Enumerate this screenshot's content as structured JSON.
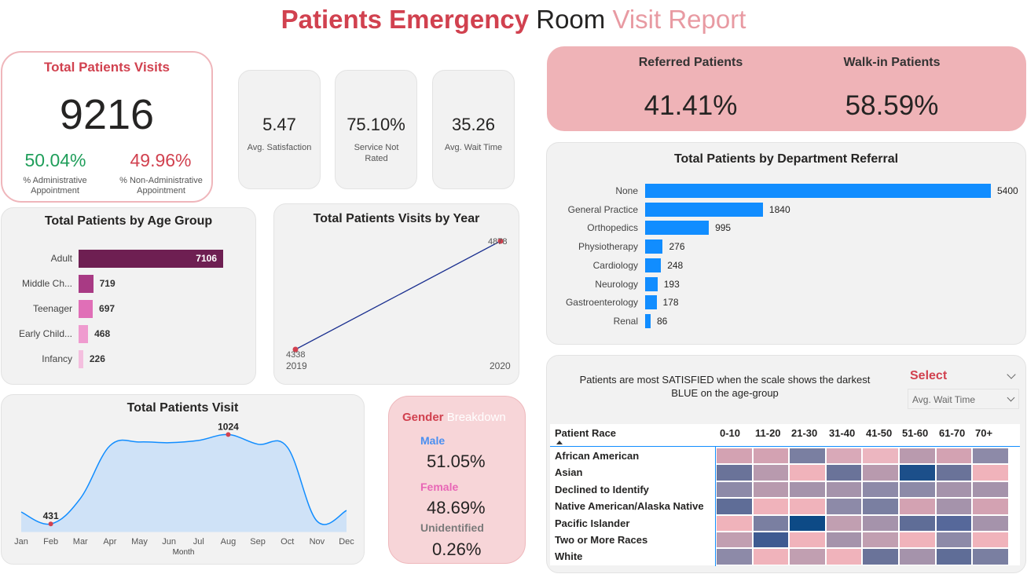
{
  "header": {
    "title_part1": "Patients Emergency",
    "title_part2": "Room",
    "title_part3": "Visit Report"
  },
  "total_visits": {
    "title": "Total Patients Visits",
    "value": "9216",
    "admin_pct": "50.04%",
    "admin_label": "% Administrative Appointment",
    "non_admin_pct": "49.96%",
    "non_admin_label": "% Non-Administrative Appointment"
  },
  "kpis": [
    {
      "value": "5.47",
      "label": "Avg. Satisfaction"
    },
    {
      "value": "75.10%",
      "label": "Service Not Rated"
    },
    {
      "value": "35.26",
      "label": "Avg. Wait Time"
    }
  ],
  "referral": {
    "referred_label": "Referred Patients",
    "referred_value": "41.41%",
    "walkin_label": "Walk-in Patients",
    "walkin_value": "58.59%"
  },
  "colors": {
    "accent_red": "#d1414f",
    "bar_blue": "#118dff",
    "pink_card": "#efb3b7",
    "male": "#4a8ff0",
    "female": "#e866b6",
    "unidentified": "#7a7a7a"
  },
  "age_group": {
    "title": "Total Patients by Age Group",
    "chart_data": {
      "type": "bar",
      "orientation": "horizontal",
      "categories": [
        "Adult",
        "Middle Ch...",
        "Teenager",
        "Early Child...",
        "Infancy"
      ],
      "values": [
        7106,
        719,
        697,
        468,
        226
      ],
      "colors": [
        "#6e1f52",
        "#a83a84",
        "#e06fb7",
        "#ef9bcf",
        "#f4bfdf"
      ]
    }
  },
  "visits_by_year": {
    "title": "Total Patients Visits by Year",
    "chart_data": {
      "type": "line",
      "x": [
        "2019",
        "2020"
      ],
      "values": [
        4338,
        4878
      ],
      "value_labels": [
        "4338",
        "4878"
      ]
    }
  },
  "department_referral": {
    "title": "Total Patients by Department Referral",
    "chart_data": {
      "type": "bar",
      "orientation": "horizontal",
      "categories": [
        "None",
        "General Practice",
        "Orthopedics",
        "Physiotherapy",
        "Cardiology",
        "Neurology",
        "Gastroenterology",
        "Renal"
      ],
      "values": [
        5400,
        1840,
        995,
        276,
        248,
        193,
        178,
        86
      ]
    }
  },
  "monthly_visits": {
    "title": "Total Patients Visit",
    "xlabel": "Month",
    "chart_data": {
      "type": "area",
      "x": [
        "Jan",
        "Feb",
        "Mar",
        "Apr",
        "May",
        "Jun",
        "Jul",
        "Aug",
        "Sep",
        "Oct",
        "Nov",
        "Dec"
      ],
      "values": [
        510,
        431,
        600,
        950,
        975,
        970,
        985,
        1024,
        960,
        940,
        450,
        520
      ],
      "value_labels": [
        {
          "month": "Feb",
          "label": "431"
        },
        {
          "month": "Aug",
          "label": "1024"
        }
      ],
      "ylim": [
        380,
        1120
      ]
    }
  },
  "gender": {
    "title_part1": "Gender",
    "title_part2": "Breakdown",
    "male_label": "Male",
    "male_value": "51.05%",
    "female_label": "Female",
    "female_value": "48.69%",
    "unidentified_label": "Unidentified",
    "unidentified_value": "0.26%"
  },
  "satisfaction_matrix": {
    "note": "Patients are most SATISFIED when the scale shows the darkest BLUE on the age-group",
    "select_label": "Select",
    "select_value": "Avg. Wait Time",
    "row_header": "Patient Race",
    "columns": [
      "0-10",
      "11-20",
      "21-30",
      "31-40",
      "41-50",
      "51-60",
      "61-70",
      "70+"
    ],
    "rows": [
      "African American",
      "Asian",
      "Declined to Identify",
      "Native American/Alaska Native",
      "Pacific Islander",
      "Two or More Races",
      "White"
    ],
    "cell_colors": [
      [
        "#d3a2b2",
        "#d3a2b2",
        "#7a7fa1",
        "#d9a9b8",
        "#ecb6c0",
        "#b99aae",
        "#d3a2b2",
        "#8d8aa8"
      ],
      [
        "#6a7399",
        "#b89aae",
        "#f0b3bb",
        "#6a7399",
        "#b89aae",
        "#1c4f8a",
        "#6a7399",
        "#f0b3bb"
      ],
      [
        "#8d8aa8",
        "#b89aae",
        "#a593ab",
        "#a593ab",
        "#8d8aa8",
        "#8d8aa8",
        "#a593ab",
        "#a593ab"
      ],
      [
        "#5f6d97",
        "#f0b3bb",
        "#f0b3bb",
        "#8d8aa8",
        "#7a7fa1",
        "#d3a2b2",
        "#a593ab",
        "#d3a2b2"
      ],
      [
        "#f0b3bb",
        "#7a7fa1",
        "#0d4a86",
        "#c19fb1",
        "#a593ab",
        "#5f6d97",
        "#56689a",
        "#a593ab"
      ],
      [
        "#c19fb1",
        "#3f5b91",
        "#f0b3bb",
        "#a593ab",
        "#c19fb1",
        "#f0b3bb",
        "#8d8aa8",
        "#f0b3bb"
      ],
      [
        "#8d8aa8",
        "#f0b3bb",
        "#c19fb1",
        "#f0b3bb",
        "#6a7399",
        "#a593ab",
        "#5f6d97",
        "#7a7fa1"
      ]
    ]
  }
}
